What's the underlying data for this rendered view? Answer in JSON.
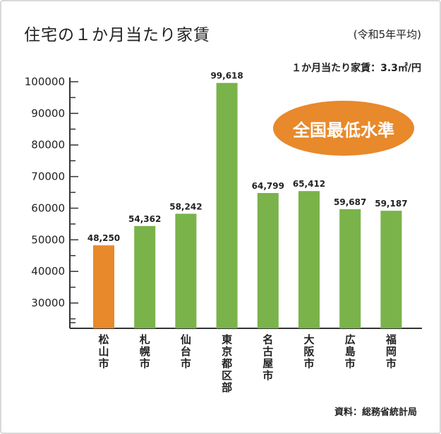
{
  "chart_data": {
    "type": "bar",
    "title": "住宅の１か月当たり家賃",
    "subtitle": "(令和5年平均)",
    "unit_note": "１か月当たり家賃：3.3㎡/円",
    "badge": "全国最低水準",
    "source": "資料：総務省統計局",
    "categories": [
      "松山市",
      "札幌市",
      "仙台市",
      "東京都区部",
      "名古屋市",
      "大阪市",
      "広島市",
      "福岡市"
    ],
    "values": [
      48250,
      54362,
      58242,
      99618,
      64799,
      65412,
      59687,
      59187
    ],
    "value_labels": [
      "48,250",
      "54,362",
      "58,242",
      "99,618",
      "64,799",
      "65,412",
      "59,687",
      "59,187"
    ],
    "highlight_index": 0,
    "y_ticks": [
      "30000",
      "40000",
      "50000",
      "60000",
      "70000",
      "80000",
      "90000",
      "100000"
    ],
    "ylim": [
      22000,
      100000
    ],
    "colors": {
      "bar": "#79b34a",
      "highlight": "#e8892b",
      "axis": "#333333"
    }
  }
}
